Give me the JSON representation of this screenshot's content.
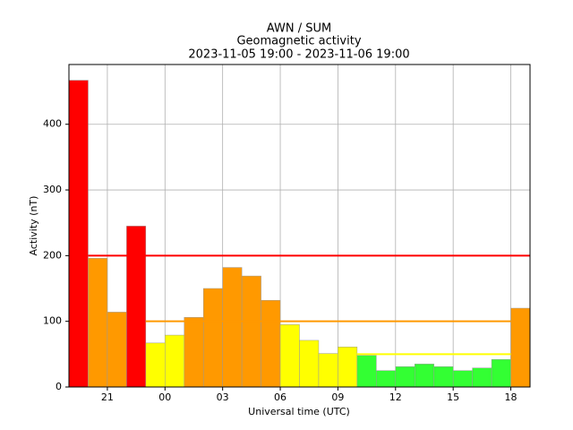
{
  "chart_data": {
    "type": "bar",
    "title": [
      "AWN / SUM",
      "Geomagnetic activity",
      "2023-11-05 19:00 - 2023-11-06 19:00"
    ],
    "xlabel": "Universal time (UTC)",
    "ylabel": "Activity (nT)",
    "x": [
      19,
      20,
      21,
      22,
      23,
      24,
      25,
      26,
      27,
      28,
      29,
      30,
      31,
      32,
      33,
      34,
      35,
      36,
      37,
      38,
      39,
      40,
      41,
      42
    ],
    "bar_width": 1,
    "values": [
      467,
      196,
      114,
      245,
      67,
      79,
      106,
      150,
      182,
      169,
      132,
      95,
      71,
      51,
      61,
      48,
      25,
      31,
      35,
      31,
      25,
      29,
      42,
      120
    ],
    "colors": [
      "#ff0000",
      "#ff9900",
      "#ff9900",
      "#ff0000",
      "#ffff00",
      "#ffff00",
      "#ff9900",
      "#ff9900",
      "#ff9900",
      "#ff9900",
      "#ff9900",
      "#ffff00",
      "#ffff00",
      "#ffff00",
      "#ffff00",
      "#33ff33",
      "#33ff33",
      "#33ff33",
      "#33ff33",
      "#33ff33",
      "#33ff33",
      "#33ff33",
      "#33ff33",
      "#ff9900"
    ],
    "thresholds": [
      {
        "value": 200,
        "color": "#ff0000",
        "x": [
          20,
          43
        ]
      },
      {
        "value": 100,
        "color": "#ff9900",
        "x": [
          23,
          42
        ]
      },
      {
        "value": 50,
        "color": "#ffff00",
        "x": [
          34,
          42
        ]
      }
    ],
    "xlim": [
      19,
      43
    ],
    "xticks": [
      21,
      {
        "value": 24,
        "label": "00"
      },
      {
        "value": 27,
        "label": "03"
      },
      {
        "value": 30,
        "label": "06"
      },
      {
        "value": 33,
        "label": "09"
      },
      {
        "value": 36,
        "label": "12"
      },
      {
        "value": 39,
        "label": "15"
      },
      {
        "value": 42,
        "label": "18"
      }
    ],
    "ylim": [
      0,
      491
    ],
    "yticks": [
      0,
      100,
      200,
      300,
      400
    ],
    "grid": true
  }
}
